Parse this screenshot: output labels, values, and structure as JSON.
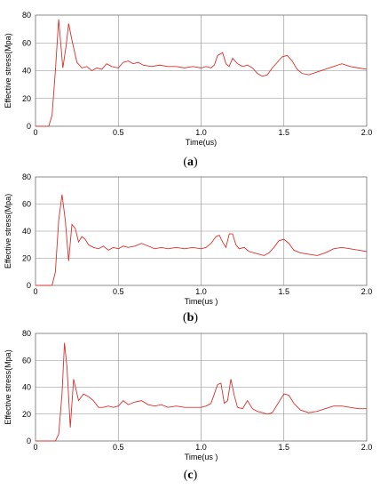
{
  "chart_data": [
    {
      "type": "line",
      "panel_label": {
        "open": "(",
        "letter": "a",
        "close": ")"
      },
      "xlabel": "Time(us)",
      "ylabel": "Effective stress(Mpa)",
      "xlim": [
        0,
        2.0
      ],
      "ylim": [
        0,
        80
      ],
      "xticks": [
        "0",
        "0.5",
        "1.0",
        "1.5",
        "2.0"
      ],
      "yticks": [
        "0",
        "20",
        "40",
        "60",
        "80"
      ],
      "grid": true,
      "series": [
        {
          "color": "#d9302c",
          "x": [
            0,
            0.08,
            0.1,
            0.12,
            0.14,
            0.165,
            0.185,
            0.2,
            0.22,
            0.25,
            0.28,
            0.31,
            0.34,
            0.37,
            0.4,
            0.43,
            0.46,
            0.5,
            0.53,
            0.56,
            0.59,
            0.62,
            0.65,
            0.7,
            0.75,
            0.8,
            0.85,
            0.9,
            0.95,
            1.0,
            1.03,
            1.06,
            1.08,
            1.1,
            1.13,
            1.15,
            1.17,
            1.19,
            1.22,
            1.25,
            1.28,
            1.31,
            1.34,
            1.37,
            1.4,
            1.43,
            1.46,
            1.49,
            1.52,
            1.55,
            1.58,
            1.61,
            1.65,
            1.7,
            1.75,
            1.8,
            1.85,
            1.9,
            1.95,
            2.0
          ],
          "y": [
            0,
            0,
            8,
            40,
            77,
            42,
            58,
            74,
            62,
            46,
            42,
            43,
            40,
            42,
            41,
            45,
            43,
            42,
            46,
            47,
            45,
            46,
            44,
            43,
            44,
            43,
            43,
            42,
            43,
            42,
            43,
            42,
            44,
            51,
            53,
            45,
            43,
            49,
            45,
            43,
            44,
            42,
            38,
            36,
            37,
            42,
            46,
            50,
            51,
            47,
            41,
            38,
            37,
            39,
            41,
            43,
            45,
            43,
            42,
            41
          ]
        }
      ]
    },
    {
      "type": "line",
      "panel_label": {
        "open": "(",
        "letter": "b",
        "close": ")"
      },
      "xlabel": "Time(us )",
      "ylabel": "Effective stress(Mpa)",
      "xlim": [
        0,
        2.0
      ],
      "ylim": [
        0,
        80
      ],
      "xticks": [
        "0",
        "0.5",
        "1.0",
        "1.5",
        "2.0"
      ],
      "yticks": [
        "0",
        "20",
        "40",
        "60",
        "80"
      ],
      "grid": true,
      "series": [
        {
          "color": "#d9302c",
          "x": [
            0,
            0.1,
            0.12,
            0.14,
            0.16,
            0.18,
            0.2,
            0.22,
            0.24,
            0.26,
            0.28,
            0.3,
            0.32,
            0.35,
            0.38,
            0.41,
            0.44,
            0.47,
            0.5,
            0.53,
            0.56,
            0.6,
            0.64,
            0.68,
            0.72,
            0.76,
            0.8,
            0.85,
            0.9,
            0.95,
            1.0,
            1.03,
            1.06,
            1.09,
            1.11,
            1.13,
            1.15,
            1.17,
            1.19,
            1.21,
            1.23,
            1.26,
            1.29,
            1.32,
            1.35,
            1.38,
            1.41,
            1.44,
            1.47,
            1.5,
            1.53,
            1.56,
            1.6,
            1.65,
            1.7,
            1.75,
            1.8,
            1.85,
            1.9,
            1.95,
            2.0
          ],
          "y": [
            0,
            0,
            10,
            48,
            67,
            48,
            18,
            45,
            42,
            32,
            36,
            34,
            30,
            28,
            27,
            29,
            26,
            28,
            27,
            29,
            28,
            29,
            31,
            29,
            27,
            28,
            27,
            28,
            27,
            28,
            27,
            28,
            31,
            36,
            37,
            32,
            28,
            38,
            38,
            30,
            27,
            28,
            25,
            24,
            23,
            22,
            24,
            28,
            33,
            34,
            31,
            26,
            24,
            23,
            22,
            24,
            27,
            28,
            27,
            26,
            25
          ]
        }
      ]
    },
    {
      "type": "line",
      "panel_label": {
        "open": "(",
        "letter": "c",
        "close": ")"
      },
      "xlabel": "Time(us )",
      "ylabel": "Effective stress(Mpa)",
      "xlim": [
        0,
        2.0
      ],
      "ylim": [
        0,
        80
      ],
      "xticks": [
        "0",
        "0.5",
        "1.0",
        "1.5",
        "2.0"
      ],
      "yticks": [
        "0",
        "20",
        "40",
        "60",
        "80"
      ],
      "grid": true,
      "series": [
        {
          "color": "#d9302c",
          "x": [
            0,
            0.12,
            0.14,
            0.16,
            0.175,
            0.19,
            0.21,
            0.23,
            0.26,
            0.29,
            0.32,
            0.35,
            0.38,
            0.41,
            0.44,
            0.47,
            0.5,
            0.53,
            0.56,
            0.6,
            0.64,
            0.68,
            0.72,
            0.76,
            0.8,
            0.85,
            0.9,
            0.95,
            1.0,
            1.03,
            1.06,
            1.08,
            1.1,
            1.12,
            1.14,
            1.16,
            1.18,
            1.2,
            1.22,
            1.25,
            1.28,
            1.31,
            1.34,
            1.37,
            1.4,
            1.43,
            1.46,
            1.5,
            1.53,
            1.56,
            1.6,
            1.65,
            1.7,
            1.75,
            1.8,
            1.85,
            1.9,
            1.95,
            2.0
          ],
          "y": [
            0,
            0,
            5,
            35,
            73,
            55,
            10,
            46,
            30,
            35,
            33,
            30,
            25,
            25,
            26,
            25,
            26,
            30,
            27,
            29,
            30,
            27,
            26,
            27,
            25,
            26,
            25,
            25,
            25,
            26,
            28,
            35,
            42,
            43,
            28,
            30,
            46,
            34,
            25,
            24,
            30,
            24,
            22,
            21,
            20,
            21,
            27,
            35,
            34,
            28,
            23,
            21,
            22,
            24,
            26,
            26,
            25,
            24,
            24
          ]
        }
      ]
    }
  ]
}
